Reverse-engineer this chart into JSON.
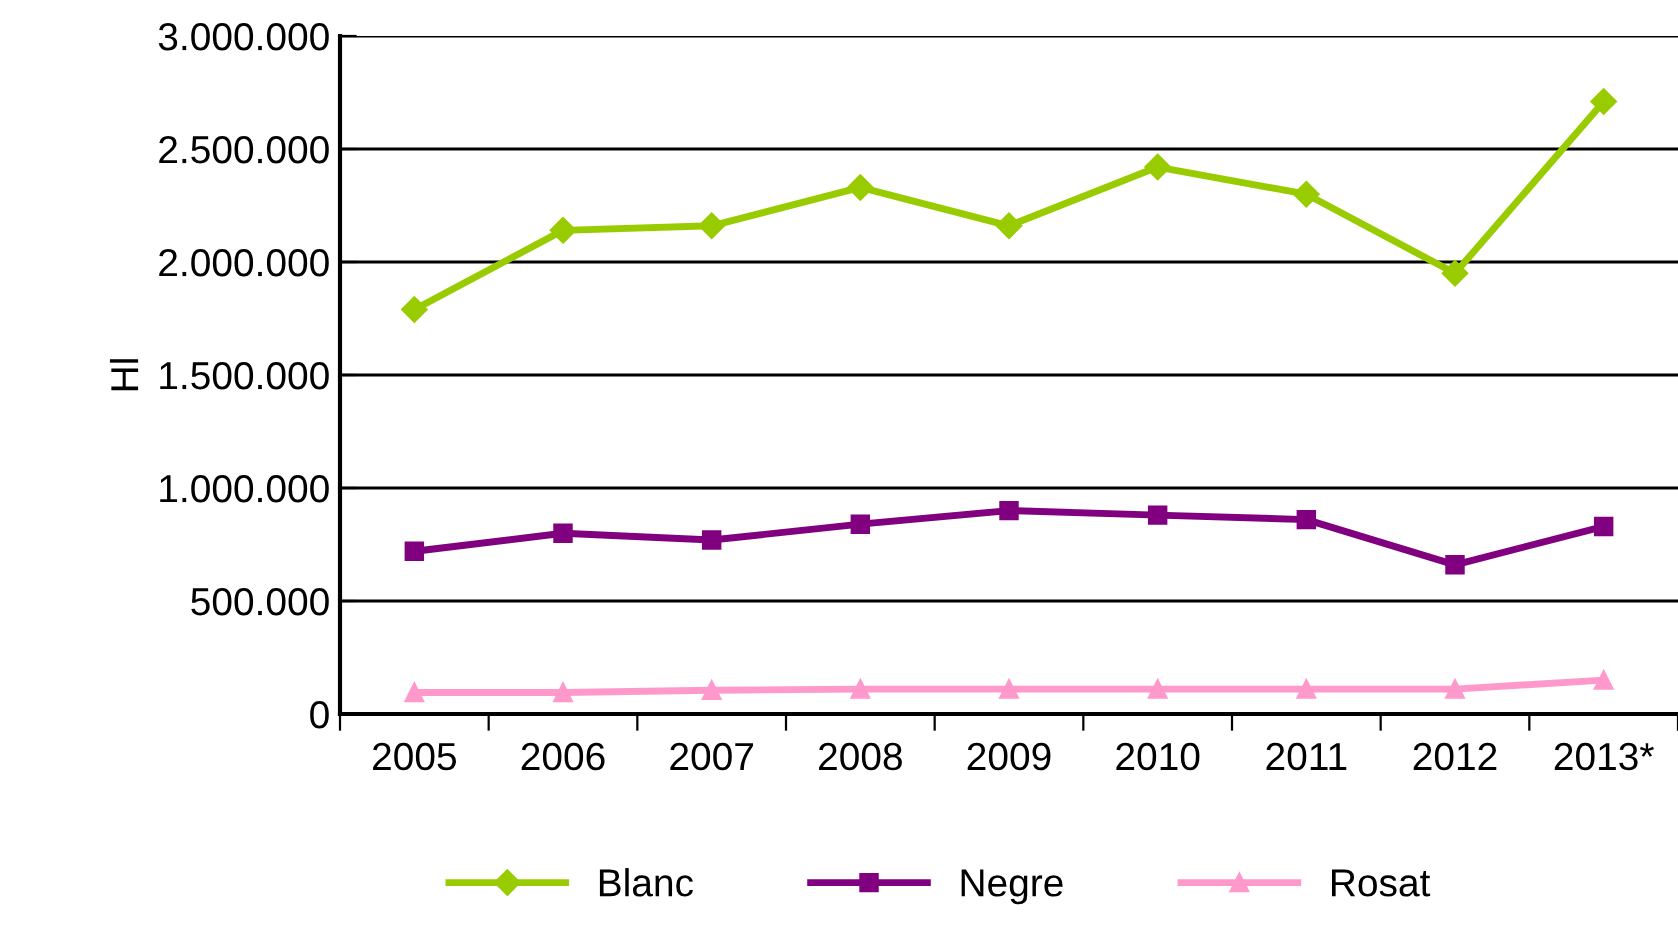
{
  "chart_data": {
    "type": "line",
    "ylabel": "Hl",
    "categories": [
      "2005",
      "2006",
      "2007",
      "2008",
      "2009",
      "2010",
      "2011",
      "2012",
      "2013*"
    ],
    "series": [
      {
        "name": "Blanc",
        "color": "#99cc00",
        "marker": "diamond",
        "values": [
          1790000,
          2140000,
          2160000,
          2330000,
          2160000,
          2420000,
          2300000,
          1950000,
          2710000
        ]
      },
      {
        "name": "Negre",
        "color": "#800080",
        "marker": "square",
        "values": [
          720000,
          800000,
          770000,
          840000,
          900000,
          880000,
          860000,
          660000,
          830000
        ]
      },
      {
        "name": "Rosat",
        "color": "#ff99cc",
        "marker": "triangle",
        "values": [
          95000,
          95000,
          105000,
          110000,
          110000,
          110000,
          110000,
          110000,
          150000
        ]
      }
    ],
    "ylim": [
      0,
      3000000
    ],
    "yticks": [
      {
        "value": 0,
        "label": "0"
      },
      {
        "value": 500000,
        "label": "500.000"
      },
      {
        "value": 1000000,
        "label": "1.000.000"
      },
      {
        "value": 1500000,
        "label": "1.500.000"
      },
      {
        "value": 2000000,
        "label": "2.000.000"
      },
      {
        "value": 2500000,
        "label": "2.500.000"
      },
      {
        "value": 3000000,
        "label": "3.000.000"
      }
    ],
    "grid": "y",
    "legend": "bottom"
  }
}
